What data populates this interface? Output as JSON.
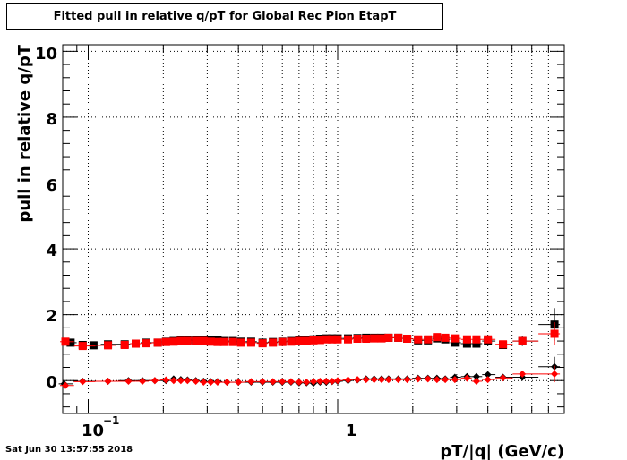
{
  "chart_data": {
    "type": "scatter",
    "title": "Fitted pull in relative q/pT for Global Rec Pion EtapT",
    "xlabel": "pT/|q| (GeV/c)",
    "ylabel": "pull in relative q/pT",
    "x_scale": "log",
    "xlim": [
      0.079,
      8.1
    ],
    "ylim": [
      -1,
      10.2
    ],
    "grid": true,
    "y_ticks": [
      "0",
      "2",
      "4",
      "6",
      "8",
      "10"
    ],
    "x_tick_labels": [
      "10",
      "−1",
      "1"
    ],
    "series": [
      {
        "marker": "square",
        "color": "#000000",
        "points": [
          [
            0.085,
            1.15
          ],
          [
            0.095,
            1.08
          ],
          [
            0.105,
            1.07
          ],
          [
            0.12,
            1.1
          ],
          [
            0.14,
            1.1
          ],
          [
            0.155,
            1.12
          ],
          [
            0.17,
            1.15
          ],
          [
            0.19,
            1.15
          ],
          [
            0.205,
            1.18
          ],
          [
            0.22,
            1.2
          ],
          [
            0.235,
            1.22
          ],
          [
            0.25,
            1.23
          ],
          [
            0.27,
            1.22
          ],
          [
            0.29,
            1.22
          ],
          [
            0.31,
            1.23
          ],
          [
            0.33,
            1.22
          ],
          [
            0.35,
            1.2
          ],
          [
            0.38,
            1.2
          ],
          [
            0.41,
            1.18
          ],
          [
            0.45,
            1.18
          ],
          [
            0.5,
            1.15
          ],
          [
            0.55,
            1.17
          ],
          [
            0.6,
            1.18
          ],
          [
            0.65,
            1.2
          ],
          [
            0.7,
            1.22
          ],
          [
            0.75,
            1.22
          ],
          [
            0.8,
            1.25
          ],
          [
            0.85,
            1.27
          ],
          [
            0.9,
            1.28
          ],
          [
            0.95,
            1.28
          ],
          [
            1.0,
            1.28
          ],
          [
            1.1,
            1.28
          ],
          [
            1.2,
            1.29
          ],
          [
            1.3,
            1.3
          ],
          [
            1.4,
            1.3
          ],
          [
            1.5,
            1.3
          ],
          [
            1.6,
            1.3
          ],
          [
            1.75,
            1.3
          ],
          [
            1.9,
            1.27
          ],
          [
            2.1,
            1.22
          ],
          [
            2.3,
            1.22
          ],
          [
            2.5,
            1.28
          ],
          [
            2.7,
            1.25
          ],
          [
            2.95,
            1.15
          ],
          [
            3.3,
            1.12
          ],
          [
            3.6,
            1.12
          ],
          [
            4.0,
            1.2
          ],
          [
            4.6,
            1.08
          ],
          [
            5.5,
            1.2
          ],
          [
            7.4,
            1.7
          ]
        ],
        "errors": [
          0.08,
          0.05,
          0.03,
          0.03,
          0.03,
          0.03,
          0.03,
          0.03,
          0.03,
          0.03,
          0.03,
          0.03,
          0.03,
          0.03,
          0.03,
          0.03,
          0.03,
          0.03,
          0.03,
          0.03,
          0.03,
          0.03,
          0.03,
          0.03,
          0.03,
          0.03,
          0.03,
          0.03,
          0.03,
          0.03,
          0.03,
          0.03,
          0.03,
          0.03,
          0.03,
          0.03,
          0.03,
          0.03,
          0.03,
          0.03,
          0.03,
          0.04,
          0.05,
          0.06,
          0.06,
          0.07,
          0.08,
          0.1,
          0.15,
          0.5
        ]
      },
      {
        "marker": "diamond",
        "color": "#000000",
        "points": [
          [
            0.08,
            -0.1
          ],
          [
            0.095,
            -0.02
          ],
          [
            0.12,
            -0.02
          ],
          [
            0.145,
            0.0
          ],
          [
            0.165,
            0.0
          ],
          [
            0.185,
            0.0
          ],
          [
            0.205,
            0.0
          ],
          [
            0.22,
            0.05
          ],
          [
            0.235,
            0.03
          ],
          [
            0.25,
            0.02
          ],
          [
            0.27,
            0.0
          ],
          [
            0.29,
            -0.02
          ],
          [
            0.31,
            -0.03
          ],
          [
            0.33,
            -0.03
          ],
          [
            0.36,
            -0.05
          ],
          [
            0.4,
            -0.05
          ],
          [
            0.45,
            -0.05
          ],
          [
            0.5,
            -0.05
          ],
          [
            0.55,
            -0.05
          ],
          [
            0.6,
            -0.05
          ],
          [
            0.65,
            -0.05
          ],
          [
            0.7,
            -0.07
          ],
          [
            0.75,
            -0.07
          ],
          [
            0.8,
            -0.08
          ],
          [
            0.85,
            -0.05
          ],
          [
            0.9,
            -0.05
          ],
          [
            0.95,
            -0.03
          ],
          [
            1.0,
            -0.02
          ],
          [
            1.1,
            0.0
          ],
          [
            1.2,
            0.02
          ],
          [
            1.3,
            0.05
          ],
          [
            1.4,
            0.05
          ],
          [
            1.5,
            0.05
          ],
          [
            1.6,
            0.05
          ],
          [
            1.75,
            0.05
          ],
          [
            1.9,
            0.05
          ],
          [
            2.1,
            0.07
          ],
          [
            2.3,
            0.07
          ],
          [
            2.5,
            0.07
          ],
          [
            2.7,
            0.05
          ],
          [
            2.95,
            0.1
          ],
          [
            3.3,
            0.12
          ],
          [
            3.6,
            0.12
          ],
          [
            4.0,
            0.18
          ],
          [
            4.6,
            0.1
          ],
          [
            5.5,
            0.1
          ],
          [
            7.4,
            0.42
          ]
        ],
        "errors": [
          0.05,
          0.03,
          0.02,
          0.02,
          0.02,
          0.02,
          0.02,
          0.02,
          0.02,
          0.02,
          0.02,
          0.02,
          0.02,
          0.02,
          0.02,
          0.02,
          0.02,
          0.02,
          0.02,
          0.02,
          0.02,
          0.02,
          0.02,
          0.02,
          0.02,
          0.02,
          0.02,
          0.02,
          0.02,
          0.02,
          0.02,
          0.02,
          0.02,
          0.02,
          0.02,
          0.02,
          0.02,
          0.03,
          0.03,
          0.03,
          0.04,
          0.05,
          0.06,
          0.06,
          0.08,
          0.1,
          0.3
        ]
      },
      {
        "marker": "square",
        "color": "#ff0000",
        "points": [
          [
            0.081,
            1.18
          ],
          [
            0.095,
            1.05
          ],
          [
            0.12,
            1.07
          ],
          [
            0.14,
            1.08
          ],
          [
            0.155,
            1.12
          ],
          [
            0.17,
            1.13
          ],
          [
            0.19,
            1.15
          ],
          [
            0.205,
            1.17
          ],
          [
            0.22,
            1.18
          ],
          [
            0.235,
            1.2
          ],
          [
            0.25,
            1.2
          ],
          [
            0.27,
            1.2
          ],
          [
            0.29,
            1.2
          ],
          [
            0.31,
            1.18
          ],
          [
            0.33,
            1.17
          ],
          [
            0.35,
            1.17
          ],
          [
            0.38,
            1.17
          ],
          [
            0.41,
            1.15
          ],
          [
            0.45,
            1.15
          ],
          [
            0.5,
            1.13
          ],
          [
            0.55,
            1.15
          ],
          [
            0.6,
            1.17
          ],
          [
            0.65,
            1.18
          ],
          [
            0.7,
            1.2
          ],
          [
            0.75,
            1.2
          ],
          [
            0.8,
            1.22
          ],
          [
            0.85,
            1.23
          ],
          [
            0.9,
            1.25
          ],
          [
            0.95,
            1.25
          ],
          [
            1.0,
            1.25
          ],
          [
            1.1,
            1.25
          ],
          [
            1.2,
            1.27
          ],
          [
            1.3,
            1.27
          ],
          [
            1.4,
            1.28
          ],
          [
            1.5,
            1.28
          ],
          [
            1.6,
            1.3
          ],
          [
            1.75,
            1.3
          ],
          [
            1.9,
            1.27
          ],
          [
            2.1,
            1.25
          ],
          [
            2.3,
            1.25
          ],
          [
            2.5,
            1.32
          ],
          [
            2.7,
            1.3
          ],
          [
            2.95,
            1.28
          ],
          [
            3.3,
            1.25
          ],
          [
            3.6,
            1.25
          ],
          [
            4.0,
            1.25
          ],
          [
            4.6,
            1.1
          ],
          [
            5.5,
            1.2
          ],
          [
            7.4,
            1.42
          ]
        ],
        "errors": [
          0.06,
          0.04,
          0.03,
          0.03,
          0.03,
          0.03,
          0.03,
          0.03,
          0.03,
          0.03,
          0.03,
          0.03,
          0.03,
          0.03,
          0.03,
          0.03,
          0.03,
          0.03,
          0.03,
          0.03,
          0.03,
          0.03,
          0.03,
          0.03,
          0.03,
          0.03,
          0.03,
          0.03,
          0.03,
          0.03,
          0.03,
          0.03,
          0.03,
          0.03,
          0.03,
          0.03,
          0.03,
          0.03,
          0.03,
          0.03,
          0.04,
          0.04,
          0.05,
          0.05,
          0.06,
          0.07,
          0.09,
          0.12,
          0.35
        ]
      },
      {
        "marker": "diamond",
        "color": "#ff0000",
        "points": [
          [
            0.081,
            -0.15
          ],
          [
            0.095,
            -0.03
          ],
          [
            0.12,
            -0.02
          ],
          [
            0.145,
            -0.02
          ],
          [
            0.165,
            -0.02
          ],
          [
            0.185,
            0.0
          ],
          [
            0.205,
            0.02
          ],
          [
            0.22,
            0.0
          ],
          [
            0.235,
            0.0
          ],
          [
            0.25,
            0.0
          ],
          [
            0.27,
            -0.02
          ],
          [
            0.29,
            -0.05
          ],
          [
            0.31,
            -0.05
          ],
          [
            0.33,
            -0.05
          ],
          [
            0.36,
            -0.05
          ],
          [
            0.4,
            -0.05
          ],
          [
            0.45,
            -0.03
          ],
          [
            0.5,
            -0.03
          ],
          [
            0.55,
            -0.03
          ],
          [
            0.6,
            -0.03
          ],
          [
            0.65,
            -0.03
          ],
          [
            0.7,
            -0.05
          ],
          [
            0.75,
            -0.05
          ],
          [
            0.8,
            -0.03
          ],
          [
            0.85,
            -0.02
          ],
          [
            0.9,
            -0.02
          ],
          [
            0.95,
            -0.02
          ],
          [
            1.0,
            0.0
          ],
          [
            1.1,
            0.02
          ],
          [
            1.2,
            0.03
          ],
          [
            1.3,
            0.03
          ],
          [
            1.4,
            0.03
          ],
          [
            1.5,
            0.03
          ],
          [
            1.6,
            0.03
          ],
          [
            1.75,
            0.03
          ],
          [
            1.9,
            0.03
          ],
          [
            2.1,
            0.05
          ],
          [
            2.3,
            0.05
          ],
          [
            2.5,
            0.03
          ],
          [
            2.7,
            0.03
          ],
          [
            2.95,
            0.03
          ],
          [
            3.3,
            0.07
          ],
          [
            3.6,
            -0.02
          ],
          [
            4.0,
            0.03
          ],
          [
            4.6,
            0.08
          ],
          [
            5.5,
            0.2
          ],
          [
            7.4,
            0.2
          ]
        ],
        "errors": [
          0.05,
          0.03,
          0.02,
          0.02,
          0.02,
          0.02,
          0.02,
          0.02,
          0.02,
          0.02,
          0.02,
          0.02,
          0.02,
          0.02,
          0.02,
          0.02,
          0.02,
          0.02,
          0.02,
          0.02,
          0.02,
          0.02,
          0.02,
          0.02,
          0.02,
          0.02,
          0.02,
          0.02,
          0.02,
          0.02,
          0.02,
          0.02,
          0.02,
          0.02,
          0.02,
          0.02,
          0.02,
          0.03,
          0.03,
          0.03,
          0.04,
          0.05,
          0.06,
          0.06,
          0.08,
          0.1,
          0.25
        ]
      }
    ]
  },
  "timestamp": "Sat Jun 30 13:57:55 2018"
}
